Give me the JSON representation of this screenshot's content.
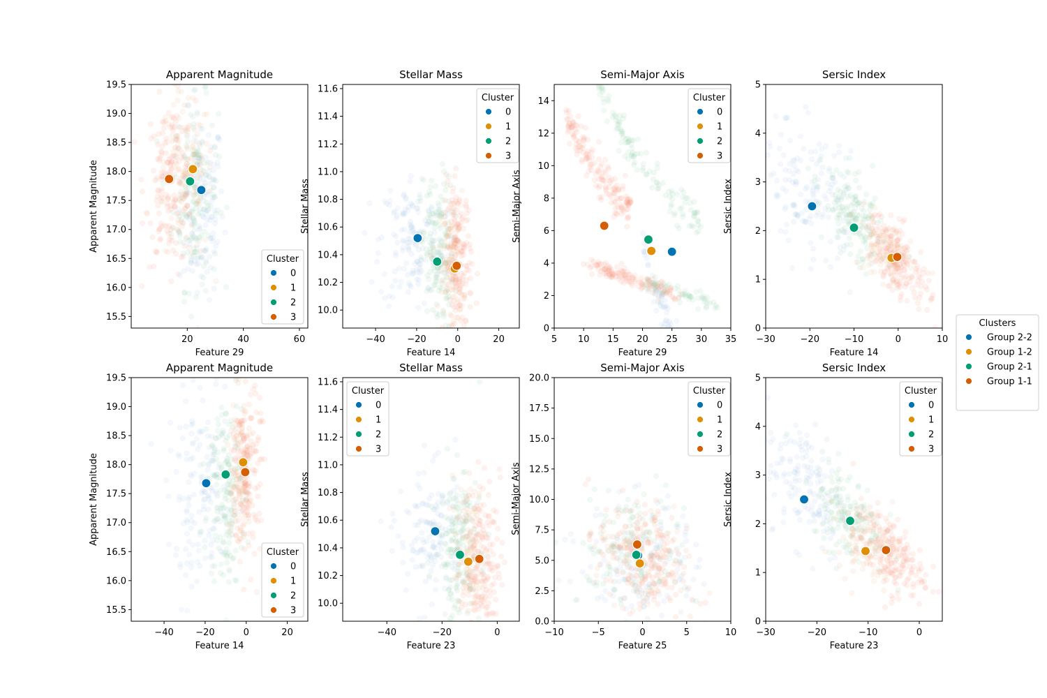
{
  "colors": {
    "0": "#0173b2",
    "1": "#de8f05",
    "2": "#029e73",
    "3": "#d55e00",
    "scatter": {
      "0": "#a6c8e8",
      "1": "#f2b380",
      "2": "#8fd1a6",
      "3": "#f7917a"
    }
  },
  "figure_legend": {
    "title": "Clusters",
    "entries": [
      {
        "label": "Group 2-2",
        "color": "#0173b2"
      },
      {
        "label": "Group 1-2",
        "color": "#de8f05"
      },
      {
        "label": "Group 2-1",
        "color": "#029e73"
      },
      {
        "label": "Group 1-1",
        "color": "#d55e00"
      }
    ]
  },
  "chart_data": [
    {
      "type": "scatter",
      "title": "Apparent Magnitude",
      "xlabel": "Feature 29",
      "ylabel": "Apparent Magnitude",
      "xlim": [
        0,
        63
      ],
      "ylim": [
        15.3,
        19.5
      ],
      "xticks": [
        20,
        40,
        60
      ],
      "yticks": [
        15.5,
        16.0,
        16.5,
        17.0,
        17.5,
        18.0,
        18.5,
        19.0,
        19.5
      ],
      "ytick_decimals": 1,
      "legend": {
        "title": "Cluster",
        "labels": [
          "0",
          "1",
          "2",
          "3"
        ],
        "position": "lower-right"
      },
      "centroids": [
        {
          "cluster": "0",
          "x": 25,
          "y": 17.68
        },
        {
          "cluster": "1",
          "x": 22,
          "y": 18.04
        },
        {
          "cluster": "2",
          "x": 21,
          "y": 17.83
        },
        {
          "cluster": "3",
          "x": 13.5,
          "y": 17.87
        }
      ],
      "clouds": [
        {
          "cluster": "0",
          "cx": 25,
          "cy": 17.4,
          "sx": 4,
          "sy": 0.8,
          "rho": 0,
          "n": 150
        },
        {
          "cluster": "2",
          "cx": 23,
          "cy": 17.6,
          "sx": 4,
          "sy": 0.8,
          "rho": 0,
          "n": 150
        },
        {
          "cluster": "1",
          "cx": 19,
          "cy": 17.9,
          "sx": 5,
          "sy": 0.7,
          "rho": 0,
          "n": 120
        },
        {
          "cluster": "3",
          "cx": 14,
          "cy": 17.8,
          "sx": 4.5,
          "sy": 0.7,
          "rho": 0,
          "n": 170
        }
      ]
    },
    {
      "type": "scatter",
      "title": "Stellar Mass",
      "xlabel": "Feature 14",
      "ylabel": "Stellar Mass",
      "xlim": [
        -56,
        30
      ],
      "ylim": [
        9.87,
        11.63
      ],
      "xticks": [
        -40,
        -20,
        0,
        20
      ],
      "yticks": [
        10.0,
        10.2,
        10.4,
        10.6,
        10.8,
        11.0,
        11.2,
        11.4,
        11.6
      ],
      "ytick_decimals": 1,
      "legend": {
        "title": "Cluster",
        "labels": [
          "0",
          "1",
          "2",
          "3"
        ],
        "position": "upper-right"
      },
      "centroids": [
        {
          "cluster": "0",
          "x": -19.5,
          "y": 10.52
        },
        {
          "cluster": "1",
          "x": -1.5,
          "y": 10.3
        },
        {
          "cluster": "2",
          "x": -10,
          "y": 10.35
        },
        {
          "cluster": "3",
          "x": -0.5,
          "y": 10.32
        }
      ],
      "clouds": [
        {
          "cluster": "0",
          "cx": -22,
          "cy": 10.5,
          "sx": 8,
          "sy": 0.25,
          "rho": 0,
          "n": 150
        },
        {
          "cluster": "2",
          "cx": -10,
          "cy": 10.4,
          "sx": 4,
          "sy": 0.28,
          "rho": 0,
          "n": 160
        },
        {
          "cluster": "1",
          "cx": -3,
          "cy": 10.35,
          "sx": 3,
          "sy": 0.25,
          "rho": 0,
          "n": 90
        },
        {
          "cluster": "3",
          "cx": 0,
          "cy": 10.35,
          "sx": 3.5,
          "sy": 0.28,
          "rho": 0,
          "n": 190
        }
      ]
    },
    {
      "type": "scatter",
      "title": "Semi-Major Axis",
      "xlabel": "Feature 29",
      "ylabel": "Semi-Major Axis",
      "xlim": [
        5,
        35
      ],
      "ylim": [
        0,
        15
      ],
      "xticks": [
        5,
        10,
        15,
        20,
        25,
        30,
        35
      ],
      "yticks": [
        0,
        2,
        4,
        6,
        8,
        10,
        12,
        14
      ],
      "ytick_decimals": 0,
      "legend": {
        "title": "Cluster",
        "labels": [
          "0",
          "1",
          "2",
          "3"
        ],
        "position": "upper-right"
      },
      "centroids": [
        {
          "cluster": "0",
          "x": 25,
          "y": 4.7
        },
        {
          "cluster": "1",
          "x": 21.5,
          "y": 4.75
        },
        {
          "cluster": "2",
          "x": 21,
          "y": 5.45
        },
        {
          "cluster": "3",
          "x": 13.5,
          "y": 6.3
        }
      ],
      "clouds": [
        {
          "cluster": "3",
          "shape": "curve",
          "a": 9.5,
          "b": 12,
          "c": 0,
          "x0": 7,
          "x1": 18,
          "n": 170,
          "sy": 0.6
        },
        {
          "cluster": "2",
          "shape": "curve",
          "a": 12,
          "b": 13,
          "c": 0,
          "x0": 12,
          "x1": 30,
          "n": 130,
          "sy": 0.6
        },
        {
          "cluster": "0",
          "shape": "curve",
          "a": 20,
          "b": 16,
          "c": 0,
          "x0": 20,
          "x1": 33,
          "n": 110,
          "sy": 0.6
        },
        {
          "cluster": "3",
          "shape": "line",
          "x0": 11,
          "y0": 4.0,
          "x1": 26,
          "y1": 2.1,
          "n": 140,
          "sy": 0.25
        },
        {
          "cluster": "2",
          "shape": "line",
          "x0": 20,
          "y0": 2.7,
          "x1": 32,
          "y1": 1.6,
          "n": 60,
          "sy": 0.3
        }
      ]
    },
    {
      "type": "scatter",
      "title": "Sersic Index",
      "xlabel": "Feature 14",
      "ylabel": "Sersic Index",
      "xlim": [
        -30,
        10
      ],
      "ylim": [
        0,
        5
      ],
      "xticks": [
        -30,
        -20,
        -10,
        0,
        10
      ],
      "yticks": [
        0,
        1,
        2,
        3,
        4,
        5
      ],
      "ytick_decimals": 0,
      "legend": null,
      "centroids": [
        {
          "cluster": "0",
          "x": -19.5,
          "y": 2.5
        },
        {
          "cluster": "1",
          "x": -1.5,
          "y": 1.44
        },
        {
          "cluster": "2",
          "x": -10,
          "y": 2.06
        },
        {
          "cluster": "3",
          "x": -0.2,
          "y": 1.46
        }
      ],
      "clouds": [
        {
          "cluster": "0",
          "cx": -20,
          "cy": 2.8,
          "sx": 5,
          "sy": 0.7,
          "rho": -0.4,
          "n": 150
        },
        {
          "cluster": "2",
          "cx": -10,
          "cy": 2.2,
          "sx": 3.5,
          "sy": 0.5,
          "rho": -0.5,
          "n": 150
        },
        {
          "cluster": "1",
          "cx": -3,
          "cy": 1.6,
          "sx": 3,
          "sy": 0.35,
          "rho": -0.4,
          "n": 90
        },
        {
          "cluster": "3",
          "cx": 0,
          "cy": 1.4,
          "sx": 3.5,
          "sy": 0.45,
          "rho": -0.6,
          "n": 190
        }
      ]
    },
    {
      "type": "scatter",
      "title": "Apparent Magnitude",
      "xlabel": "Feature 14",
      "ylabel": "Apparent Magnitude",
      "xlim": [
        -56,
        30
      ],
      "ylim": [
        15.3,
        19.5
      ],
      "xticks": [
        -40,
        -20,
        0,
        20
      ],
      "yticks": [
        15.5,
        16.0,
        16.5,
        17.0,
        17.5,
        18.0,
        18.5,
        19.0,
        19.5
      ],
      "ytick_decimals": 1,
      "legend": {
        "title": "Cluster",
        "labels": [
          "0",
          "1",
          "2",
          "3"
        ],
        "position": "lower-right"
      },
      "centroids": [
        {
          "cluster": "0",
          "x": -19.5,
          "y": 17.68
        },
        {
          "cluster": "1",
          "x": -1.5,
          "y": 18.04
        },
        {
          "cluster": "2",
          "x": -10,
          "y": 17.83
        },
        {
          "cluster": "3",
          "x": -0.5,
          "y": 17.87
        }
      ],
      "clouds": [
        {
          "cluster": "0",
          "cx": -22,
          "cy": 17.4,
          "sx": 8,
          "sy": 0.8,
          "rho": 0,
          "n": 150
        },
        {
          "cluster": "2",
          "cx": -10,
          "cy": 17.6,
          "sx": 4,
          "sy": 0.8,
          "rho": 0,
          "n": 160
        },
        {
          "cluster": "1",
          "cx": -3,
          "cy": 17.9,
          "sx": 3,
          "sy": 0.7,
          "rho": 0,
          "n": 90
        },
        {
          "cluster": "3",
          "cx": 0,
          "cy": 17.9,
          "sx": 3.5,
          "sy": 0.75,
          "rho": 0,
          "n": 190
        }
      ]
    },
    {
      "type": "scatter",
      "title": "Stellar Mass",
      "xlabel": "Feature 23",
      "ylabel": "Stellar Mass",
      "xlim": [
        -56,
        8
      ],
      "ylim": [
        9.87,
        11.63
      ],
      "xticks": [
        -40,
        -20,
        0
      ],
      "yticks": [
        10.0,
        10.2,
        10.4,
        10.6,
        10.8,
        11.0,
        11.2,
        11.4,
        11.6
      ],
      "ytick_decimals": 1,
      "legend": {
        "title": "Cluster",
        "labels": [
          "0",
          "1",
          "2",
          "3"
        ],
        "position": "upper-left"
      },
      "centroids": [
        {
          "cluster": "0",
          "x": -22.5,
          "y": 10.52
        },
        {
          "cluster": "1",
          "x": -10.5,
          "y": 10.3
        },
        {
          "cluster": "2",
          "x": -13.5,
          "y": 10.35
        },
        {
          "cluster": "3",
          "x": -6.5,
          "y": 10.32
        }
      ],
      "clouds": [
        {
          "cluster": "0",
          "cx": -24,
          "cy": 10.5,
          "sx": 6,
          "sy": 0.25,
          "rho": 0,
          "n": 150
        },
        {
          "cluster": "2",
          "cx": -14,
          "cy": 10.4,
          "sx": 4,
          "sy": 0.28,
          "rho": 0,
          "n": 160
        },
        {
          "cluster": "1",
          "cx": -10,
          "cy": 10.35,
          "sx": 3,
          "sy": 0.25,
          "rho": 0,
          "n": 90
        },
        {
          "cluster": "3",
          "cx": -6,
          "cy": 10.3,
          "sx": 3.5,
          "sy": 0.28,
          "rho": 0,
          "n": 190
        }
      ]
    },
    {
      "type": "scatter",
      "title": "Semi-Major Axis",
      "xlabel": "Feature 25",
      "ylabel": "Semi-Major Axis",
      "xlim": [
        -10,
        10
      ],
      "ylim": [
        0,
        20
      ],
      "xticks": [
        -10,
        -5,
        0,
        5,
        10
      ],
      "yticks": [
        0.0,
        2.5,
        5.0,
        7.5,
        10.0,
        12.5,
        15.0,
        17.5,
        20.0
      ],
      "ytick_decimals": 1,
      "legend": {
        "title": "Cluster",
        "labels": [
          "0",
          "1",
          "2",
          "3"
        ],
        "position": "upper-right"
      },
      "centroids": [
        {
          "cluster": "0",
          "x": -0.5,
          "y": 5.4
        },
        {
          "cluster": "1",
          "x": -0.3,
          "y": 4.75
        },
        {
          "cluster": "2",
          "x": -0.7,
          "y": 5.45
        },
        {
          "cluster": "3",
          "x": -0.6,
          "y": 6.3
        }
      ],
      "clouds": [
        {
          "cluster": "0",
          "cx": 0,
          "cy": 5,
          "sx": 3.5,
          "sy": 2.5,
          "rho": 0,
          "n": 130
        },
        {
          "cluster": "2",
          "cx": -1,
          "cy": 6,
          "sx": 3,
          "sy": 2.5,
          "rho": 0,
          "n": 140
        },
        {
          "cluster": "1",
          "cx": 0,
          "cy": 5,
          "sx": 2.5,
          "sy": 2,
          "rho": 0,
          "n": 90
        },
        {
          "cluster": "3",
          "cx": 0,
          "cy": 5,
          "sx": 2.5,
          "sy": 2.5,
          "rho": -0.4,
          "n": 190
        }
      ]
    },
    {
      "type": "scatter",
      "title": "Sersic Index",
      "xlabel": "Feature 23",
      "ylabel": "Sersic Index",
      "xlim": [
        -30,
        4.5
      ],
      "ylim": [
        0,
        5
      ],
      "xticks": [
        -30,
        -20,
        -10,
        0
      ],
      "yticks": [
        0,
        1,
        2,
        3,
        4,
        5
      ],
      "ytick_decimals": 0,
      "legend": {
        "title": "Cluster",
        "labels": [
          "0",
          "1",
          "2",
          "3"
        ],
        "position": "upper-right"
      },
      "centroids": [
        {
          "cluster": "0",
          "x": -22.5,
          "y": 2.5
        },
        {
          "cluster": "1",
          "x": -10.5,
          "y": 1.44
        },
        {
          "cluster": "2",
          "x": -13.5,
          "y": 2.06
        },
        {
          "cluster": "3",
          "x": -6.5,
          "y": 1.46
        }
      ],
      "clouds": [
        {
          "cluster": "0",
          "cx": -22,
          "cy": 2.8,
          "sx": 4,
          "sy": 0.7,
          "rho": -0.4,
          "n": 150
        },
        {
          "cluster": "2",
          "cx": -14,
          "cy": 2.2,
          "sx": 3.5,
          "sy": 0.5,
          "rho": -0.4,
          "n": 150
        },
        {
          "cluster": "1",
          "cx": -10,
          "cy": 1.6,
          "sx": 3,
          "sy": 0.4,
          "rho": -0.3,
          "n": 90
        },
        {
          "cluster": "3",
          "cx": -6,
          "cy": 1.4,
          "sx": 3.5,
          "sy": 0.45,
          "rho": -0.5,
          "n": 190
        }
      ]
    }
  ]
}
